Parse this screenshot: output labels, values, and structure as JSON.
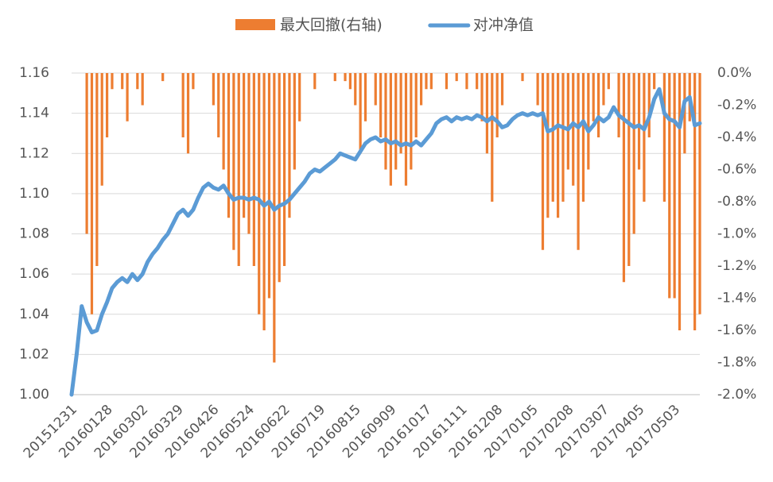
{
  "chart_data": {
    "type": "combo",
    "categories": [
      "20151231",
      null,
      null,
      null,
      null,
      null,
      null,
      "20160128",
      null,
      null,
      null,
      null,
      null,
      null,
      "20160302",
      null,
      null,
      null,
      null,
      null,
      null,
      "20160329",
      null,
      null,
      null,
      null,
      null,
      null,
      "20160426",
      null,
      null,
      null,
      null,
      null,
      null,
      "20160524",
      null,
      null,
      null,
      null,
      null,
      null,
      "20160622",
      null,
      null,
      null,
      null,
      null,
      null,
      "20160719",
      null,
      null,
      null,
      null,
      null,
      null,
      "20160815",
      null,
      null,
      null,
      null,
      null,
      null,
      "20160909",
      null,
      null,
      null,
      null,
      null,
      null,
      "20161017",
      null,
      null,
      null,
      null,
      null,
      null,
      "20161111",
      null,
      null,
      null,
      null,
      null,
      null,
      "20161208",
      null,
      null,
      null,
      null,
      null,
      null,
      "20170105",
      null,
      null,
      null,
      null,
      null,
      null,
      "20170208",
      null,
      null,
      null,
      null,
      null,
      null,
      "20170307",
      null,
      null,
      null,
      null,
      null,
      null,
      "20170405",
      null,
      null,
      null,
      null,
      null,
      null,
      "20170503",
      null,
      null,
      null,
      null,
      null
    ],
    "series": [
      {
        "name": "最大回撤(右轴)",
        "type": "bar",
        "axis": "y2",
        "color": "#ed7d31",
        "values": [
          0,
          0,
          0,
          -1.0,
          -1.5,
          -1.2,
          -0.7,
          -0.4,
          -0.1,
          0,
          -0.1,
          -0.3,
          0,
          -0.1,
          -0.2,
          0,
          0,
          0,
          -0.05,
          0,
          0,
          0,
          -0.4,
          -0.5,
          -0.1,
          0,
          0,
          0,
          -0.2,
          -0.4,
          -0.6,
          -0.9,
          -1.1,
          -1.2,
          -0.9,
          -1.0,
          -1.2,
          -1.5,
          -1.6,
          -1.4,
          -1.8,
          -1.3,
          -1.2,
          -0.9,
          -0.6,
          -0.3,
          0,
          0,
          -0.1,
          0,
          0,
          0,
          -0.05,
          0,
          -0.05,
          -0.1,
          -0.2,
          -0.5,
          -0.3,
          0,
          -0.2,
          -0.4,
          -0.6,
          -0.7,
          -0.6,
          -0.5,
          -0.7,
          -0.6,
          -0.4,
          -0.2,
          -0.1,
          -0.1,
          0,
          0,
          -0.1,
          0,
          -0.05,
          0,
          -0.1,
          0,
          -0.1,
          -0.3,
          -0.5,
          -0.8,
          -0.4,
          -0.2,
          0,
          0,
          0,
          -0.05,
          0,
          0,
          -0.2,
          -1.1,
          -0.9,
          -0.8,
          -0.9,
          -0.8,
          -0.6,
          -0.7,
          -1.1,
          -0.8,
          -0.6,
          -0.3,
          -0.4,
          -0.2,
          -0.1,
          0,
          -0.4,
          -1.3,
          -1.2,
          -1.0,
          -0.6,
          -0.8,
          -0.4,
          -0.1,
          0,
          -0.8,
          -1.4,
          -1.4,
          -1.6,
          -0.5,
          -0.3,
          -1.6,
          -1.5
        ]
      },
      {
        "name": "对冲净值",
        "type": "line",
        "color": "#5b9bd5",
        "values": [
          1.0,
          1.02,
          1.044,
          1.036,
          1.031,
          1.032,
          1.04,
          1.046,
          1.053,
          1.056,
          1.058,
          1.056,
          1.06,
          1.057,
          1.06,
          1.066,
          1.07,
          1.073,
          1.077,
          1.08,
          1.085,
          1.09,
          1.092,
          1.089,
          1.092,
          1.098,
          1.103,
          1.105,
          1.103,
          1.102,
          1.104,
          1.1,
          1.097,
          1.098,
          1.098,
          1.097,
          1.098,
          1.097,
          1.094,
          1.096,
          1.092,
          1.094,
          1.095,
          1.097,
          1.1,
          1.103,
          1.106,
          1.11,
          1.112,
          1.111,
          1.113,
          1.115,
          1.117,
          1.12,
          1.119,
          1.118,
          1.117,
          1.121,
          1.125,
          1.127,
          1.128,
          1.126,
          1.127,
          1.125,
          1.126,
          1.124,
          1.125,
          1.124,
          1.126,
          1.124,
          1.127,
          1.13,
          1.135,
          1.137,
          1.138,
          1.136,
          1.138,
          1.137,
          1.138,
          1.137,
          1.139,
          1.138,
          1.136,
          1.138,
          1.136,
          1.133,
          1.134,
          1.137,
          1.139,
          1.14,
          1.139,
          1.14,
          1.139,
          1.14,
          1.131,
          1.132,
          1.134,
          1.133,
          1.132,
          1.135,
          1.133,
          1.136,
          1.131,
          1.134,
          1.138,
          1.136,
          1.138,
          1.143,
          1.139,
          1.137,
          1.135,
          1.133,
          1.134,
          1.132,
          1.138,
          1.147,
          1.152,
          1.14,
          1.137,
          1.136,
          1.133,
          1.146,
          1.148,
          1.134,
          1.135
        ]
      }
    ],
    "ylim": [
      1.0,
      1.16
    ],
    "yticks": [
      {
        "value": 1.0,
        "label": "1.00"
      },
      {
        "value": 1.02,
        "label": "1.02"
      },
      {
        "value": 1.04,
        "label": "1.04"
      },
      {
        "value": 1.06,
        "label": "1.06"
      },
      {
        "value": 1.08,
        "label": "1.08"
      },
      {
        "value": 1.1,
        "label": "1.10"
      },
      {
        "value": 1.12,
        "label": "1.12"
      },
      {
        "value": 1.14,
        "label": "1.14"
      },
      {
        "value": 1.16,
        "label": "1.16"
      }
    ],
    "y2lim": [
      -2.0,
      0
    ],
    "y2ticks": [
      {
        "value": -2.0,
        "label": "-2.0%"
      },
      {
        "value": -1.8,
        "label": "-1.8%"
      },
      {
        "value": -1.6,
        "label": "-1.6%"
      },
      {
        "value": -1.4,
        "label": "-1.4%"
      },
      {
        "value": -1.2,
        "label": "-1.2%"
      },
      {
        "value": -1.0,
        "label": "-1.0%"
      },
      {
        "value": -0.8,
        "label": "-0.8%"
      },
      {
        "value": -0.6,
        "label": "-0.6%"
      },
      {
        "value": -0.4,
        "label": "-0.4%"
      },
      {
        "value": -0.2,
        "label": "-0.2%"
      },
      {
        "value": 0,
        "label": "0.0%"
      }
    ],
    "grid": true,
    "legend": "top"
  }
}
